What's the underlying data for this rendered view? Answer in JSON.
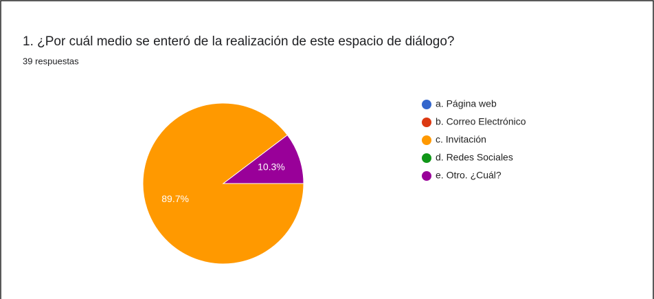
{
  "chart_data": {
    "type": "pie",
    "title": "1. ¿Por cuál medio se enteró de la realización de este espacio de diálogo?",
    "subtitle": "39 respuestas",
    "categories": [
      "a. Página web",
      "b. Correo Electrónico",
      "c. Invitación",
      "d. Redes Sociales",
      "e. Otro. ¿Cuál?"
    ],
    "values": [
      0,
      0,
      89.7,
      0,
      10.3
    ],
    "value_labels": [
      null,
      null,
      "89.7%",
      null,
      "10.3%"
    ],
    "colors": [
      "#3366cc",
      "#dc3912",
      "#ff9900",
      "#109618",
      "#990099"
    ],
    "legend": "right"
  }
}
